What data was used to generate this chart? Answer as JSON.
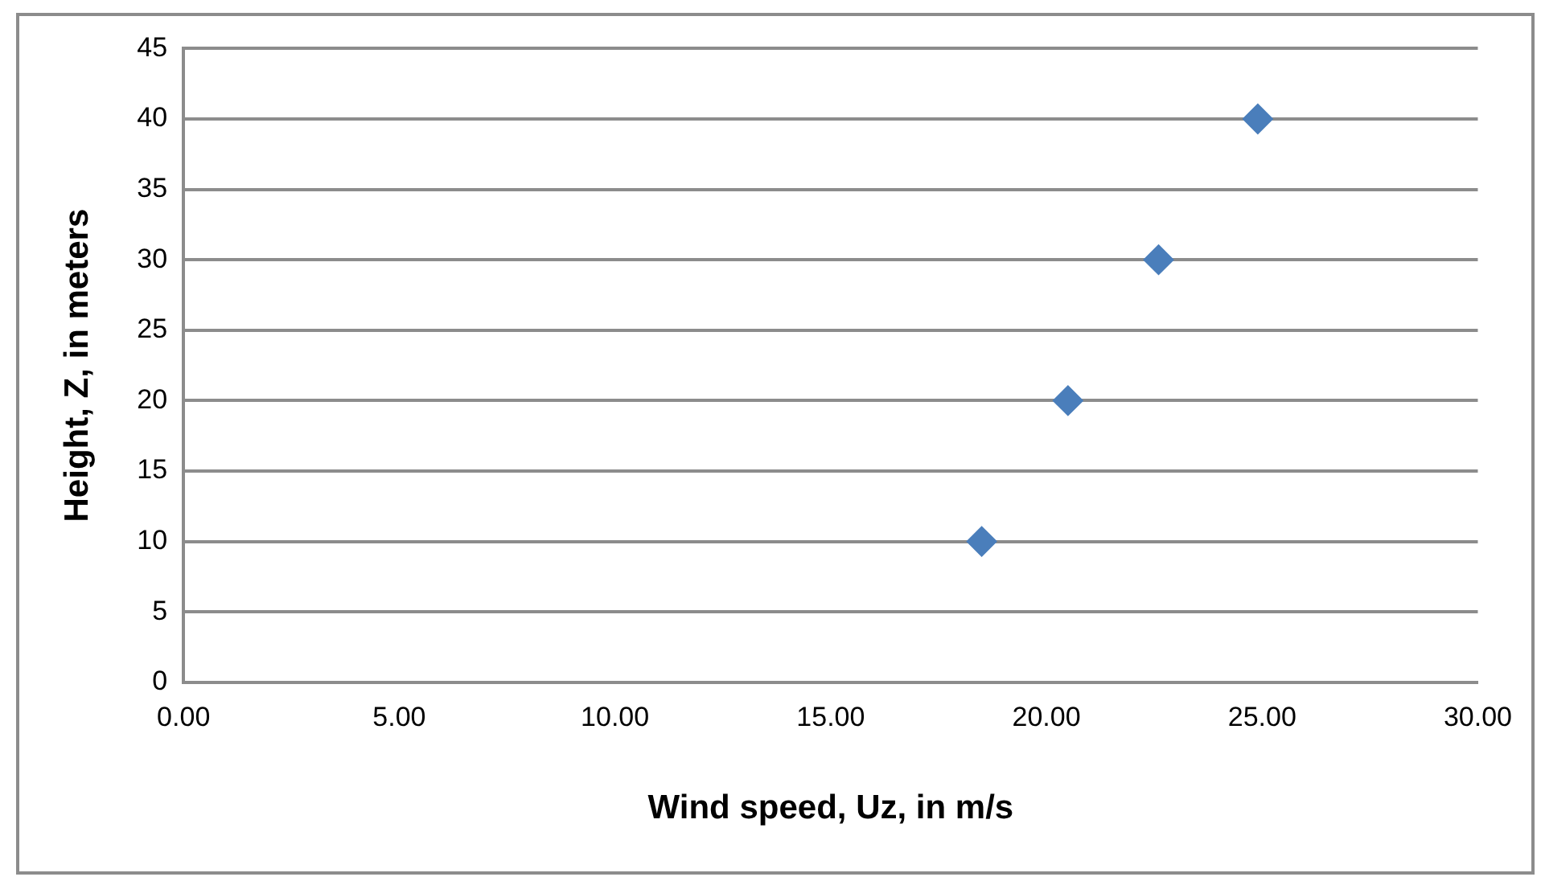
{
  "chart_data": {
    "type": "scatter",
    "xlabel": "Wind speed, Uz, in m/s",
    "ylabel": "Height, Z, in meters",
    "x": [
      18.5,
      20.5,
      22.6,
      24.9
    ],
    "series": [
      {
        "color": "#4a7ebb",
        "values": [
          10,
          20,
          30,
          40
        ]
      }
    ],
    "marker": "diamond",
    "xlim": [
      0,
      30
    ],
    "xticks": [
      {
        "value": 0,
        "label": "0.00"
      },
      {
        "value": 5,
        "label": "5.00"
      },
      {
        "value": 10,
        "label": "10.00"
      },
      {
        "value": 15,
        "label": "15.00"
      },
      {
        "value": 20,
        "label": "20.00"
      },
      {
        "value": 25,
        "label": "25.00"
      },
      {
        "value": 30,
        "label": "30.00"
      }
    ],
    "ylim": [
      0,
      45
    ],
    "yticks": [
      0,
      5,
      10,
      15,
      20,
      25,
      30,
      35,
      40,
      45
    ],
    "grid": "y",
    "legend": false
  }
}
